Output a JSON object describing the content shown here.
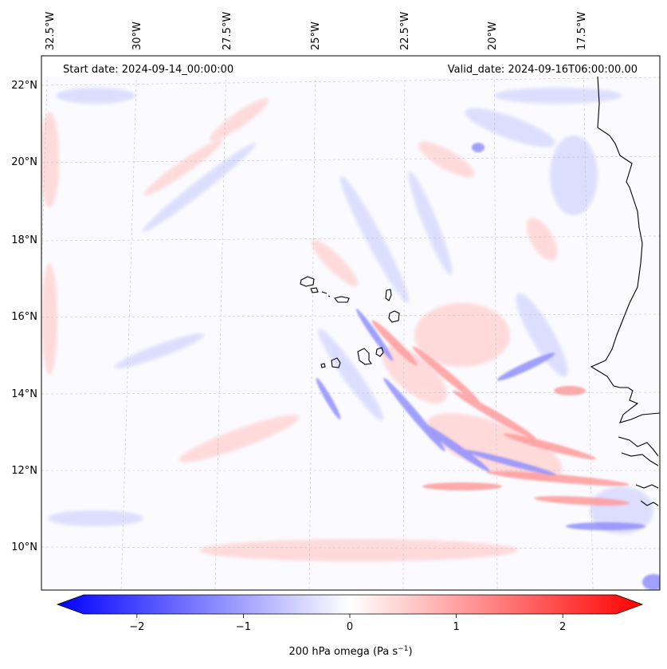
{
  "map": {
    "start_date_label": "Start date: 2024-09-14_00:00:00",
    "valid_date_label": "Valid_date: 2024-09-16T06:00:00.00",
    "lon_labels": [
      "32.5°W",
      "30°W",
      "27.5°W",
      "25°W",
      "22.5°W",
      "20°W",
      "17.5°W"
    ],
    "lat_labels": [
      "22°N",
      "20°N",
      "18°N",
      "16°N",
      "14°N",
      "12°N",
      "10°N"
    ],
    "extent": {
      "lon_min": -32.6,
      "lon_max": -15.3,
      "lat_min": 8.9,
      "lat_max": 22.7
    },
    "field": "200 hPa omega",
    "colormap": {
      "negative": "#0000ff",
      "zero": "#ffffff",
      "positive": "#ff0000"
    }
  },
  "colorbar": {
    "label": "200 hPa omega (Pa s",
    "label_sup": "−1",
    "label_close": ")",
    "tick_labels": [
      "−2",
      "−1",
      "0",
      "1",
      "2"
    ],
    "tick_values": [
      -2,
      -1,
      0,
      1,
      2
    ],
    "range": [
      -2.75,
      2.75
    ]
  }
}
